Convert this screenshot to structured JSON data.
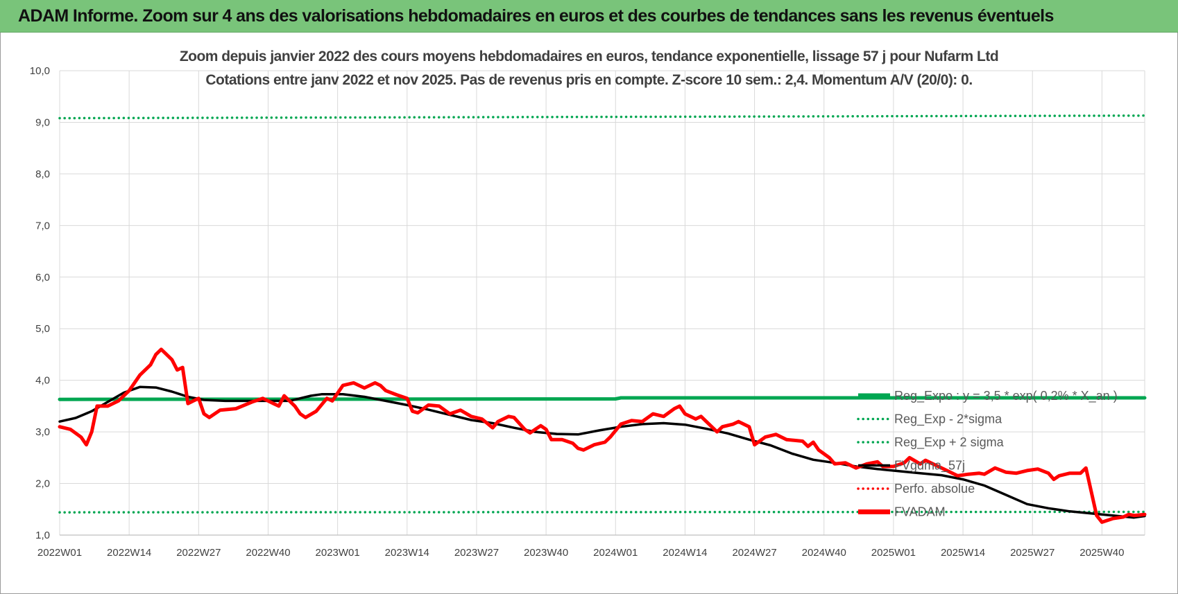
{
  "banner": {
    "title": "ADAM Informe. Zoom sur 4 ans des valorisations hebdomadaires en euros et des courbes de tendances sans les revenus éventuels"
  },
  "chart_data": {
    "type": "line",
    "title": "Zoom depuis janvier 2022 des cours moyens hebdomadaires en euros, tendance exponentielle, lissage 57 j pour Nufarm Ltd",
    "subtitle": "Cotations entre janv 2022 et nov 2025. Pas de revenus pris en compte. Z-score 10 sem.: 2,4. Momentum A/V (20/0): 0.",
    "xlabel": "",
    "ylabel": "",
    "ylim": [
      1.0,
      10.0
    ],
    "xlim": [
      1,
      204
    ],
    "y_ticks": [
      "1,0",
      "2,0",
      "3,0",
      "4,0",
      "5,0",
      "6,0",
      "7,0",
      "8,0",
      "9,0",
      "10,0"
    ],
    "y_tick_values": [
      1,
      2,
      3,
      4,
      5,
      6,
      7,
      8,
      9,
      10
    ],
    "x_ticks": [
      "2022W01",
      "2022W14",
      "2022W27",
      "2022W40",
      "2023W01",
      "2023W14",
      "2023W27",
      "2023W40",
      "2024W01",
      "2024W14",
      "2024W27",
      "2024W40",
      "2025W01",
      "2025W14",
      "2025W27",
      "2025W40"
    ],
    "x_tick_values": [
      1,
      14,
      27,
      40,
      53,
      66,
      79,
      92,
      105,
      118,
      131,
      144,
      157,
      170,
      183,
      196
    ],
    "grid": true,
    "legend_position": "right",
    "series": [
      {
        "name": "Reg_Expo : y = 3,5 * exp( 0,2% * X_an )",
        "color": "#00a651",
        "style": "solid-thick",
        "points": [
          [
            1,
            3.63
          ],
          [
            105,
            3.64
          ],
          [
            106,
            3.66
          ],
          [
            204,
            3.66
          ]
        ]
      },
      {
        "name": "Reg_Exp - 2*sigma",
        "color": "#00a651",
        "style": "dotted",
        "points": [
          [
            1,
            1.44
          ],
          [
            204,
            1.45
          ]
        ]
      },
      {
        "name": "Reg_Exp + 2 sigma",
        "color": "#00a651",
        "style": "dotted",
        "points": [
          [
            1,
            9.08
          ],
          [
            204,
            9.13
          ]
        ]
      },
      {
        "name": "FVgdma_57j",
        "color": "#000000",
        "style": "solid",
        "points": [
          [
            1,
            3.2
          ],
          [
            4,
            3.27
          ],
          [
            7,
            3.4
          ],
          [
            10,
            3.58
          ],
          [
            13,
            3.76
          ],
          [
            16,
            3.87
          ],
          [
            19,
            3.86
          ],
          [
            22,
            3.78
          ],
          [
            25,
            3.68
          ],
          [
            28,
            3.62
          ],
          [
            32,
            3.6
          ],
          [
            36,
            3.6
          ],
          [
            40,
            3.6
          ],
          [
            44,
            3.6
          ],
          [
            48,
            3.7
          ],
          [
            50,
            3.73
          ],
          [
            54,
            3.73
          ],
          [
            58,
            3.68
          ],
          [
            62,
            3.6
          ],
          [
            66,
            3.52
          ],
          [
            70,
            3.43
          ],
          [
            74,
            3.33
          ],
          [
            78,
            3.23
          ],
          [
            82,
            3.17
          ],
          [
            86,
            3.08
          ],
          [
            90,
            3.0
          ],
          [
            94,
            2.96
          ],
          [
            98,
            2.95
          ],
          [
            102,
            3.03
          ],
          [
            106,
            3.1
          ],
          [
            110,
            3.15
          ],
          [
            114,
            3.17
          ],
          [
            118,
            3.14
          ],
          [
            122,
            3.06
          ],
          [
            126,
            2.97
          ],
          [
            130,
            2.85
          ],
          [
            134,
            2.74
          ],
          [
            138,
            2.58
          ],
          [
            142,
            2.46
          ],
          [
            146,
            2.4
          ],
          [
            150,
            2.33
          ],
          [
            154,
            2.28
          ],
          [
            158,
            2.24
          ],
          [
            162,
            2.2
          ],
          [
            166,
            2.16
          ],
          [
            170,
            2.08
          ],
          [
            174,
            1.96
          ],
          [
            178,
            1.78
          ],
          [
            182,
            1.6
          ],
          [
            186,
            1.52
          ],
          [
            190,
            1.46
          ],
          [
            194,
            1.42
          ],
          [
            198,
            1.38
          ],
          [
            202,
            1.34
          ],
          [
            204,
            1.37
          ]
        ]
      },
      {
        "name": "Perfo. absolue",
        "color": "#ff0000",
        "style": "dotted",
        "points": []
      },
      {
        "name": "FVADAM",
        "color": "#ff0000",
        "style": "solid-thick",
        "points": [
          [
            1,
            3.1
          ],
          [
            3,
            3.05
          ],
          [
            5,
            2.9
          ],
          [
            6,
            2.75
          ],
          [
            7,
            3.0
          ],
          [
            8,
            3.5
          ],
          [
            10,
            3.5
          ],
          [
            12,
            3.6
          ],
          [
            14,
            3.8
          ],
          [
            16,
            4.1
          ],
          [
            18,
            4.3
          ],
          [
            19,
            4.5
          ],
          [
            20,
            4.6
          ],
          [
            21,
            4.5
          ],
          [
            22,
            4.4
          ],
          [
            23,
            4.2
          ],
          [
            24,
            4.25
          ],
          [
            25,
            3.55
          ],
          [
            26,
            3.6
          ],
          [
            27,
            3.65
          ],
          [
            28,
            3.35
          ],
          [
            29,
            3.28
          ],
          [
            31,
            3.42
          ],
          [
            34,
            3.45
          ],
          [
            37,
            3.58
          ],
          [
            39,
            3.65
          ],
          [
            41,
            3.55
          ],
          [
            42,
            3.5
          ],
          [
            43,
            3.7
          ],
          [
            45,
            3.5
          ],
          [
            46,
            3.35
          ],
          [
            47,
            3.28
          ],
          [
            49,
            3.4
          ],
          [
            51,
            3.65
          ],
          [
            52,
            3.6
          ],
          [
            54,
            3.9
          ],
          [
            56,
            3.95
          ],
          [
            58,
            3.85
          ],
          [
            60,
            3.95
          ],
          [
            61,
            3.9
          ],
          [
            62,
            3.8
          ],
          [
            64,
            3.72
          ],
          [
            66,
            3.65
          ],
          [
            67,
            3.4
          ],
          [
            68,
            3.37
          ],
          [
            70,
            3.52
          ],
          [
            72,
            3.5
          ],
          [
            74,
            3.35
          ],
          [
            76,
            3.42
          ],
          [
            78,
            3.3
          ],
          [
            80,
            3.25
          ],
          [
            82,
            3.08
          ],
          [
            83,
            3.2
          ],
          [
            85,
            3.3
          ],
          [
            86,
            3.28
          ],
          [
            88,
            3.05
          ],
          [
            89,
            2.98
          ],
          [
            91,
            3.12
          ],
          [
            92,
            3.05
          ],
          [
            93,
            2.85
          ],
          [
            95,
            2.85
          ],
          [
            97,
            2.78
          ],
          [
            98,
            2.68
          ],
          [
            99,
            2.65
          ],
          [
            101,
            2.75
          ],
          [
            103,
            2.8
          ],
          [
            104,
            2.9
          ],
          [
            106,
            3.15
          ],
          [
            108,
            3.22
          ],
          [
            110,
            3.2
          ],
          [
            112,
            3.35
          ],
          [
            114,
            3.3
          ],
          [
            116,
            3.45
          ],
          [
            117,
            3.5
          ],
          [
            118,
            3.35
          ],
          [
            120,
            3.25
          ],
          [
            121,
            3.3
          ],
          [
            123,
            3.1
          ],
          [
            124,
            3.0
          ],
          [
            125,
            3.1
          ],
          [
            127,
            3.15
          ],
          [
            128,
            3.2
          ],
          [
            130,
            3.1
          ],
          [
            131,
            2.75
          ],
          [
            133,
            2.9
          ],
          [
            135,
            2.95
          ],
          [
            137,
            2.85
          ],
          [
            140,
            2.82
          ],
          [
            141,
            2.72
          ],
          [
            142,
            2.8
          ],
          [
            143,
            2.65
          ],
          [
            145,
            2.5
          ],
          [
            146,
            2.38
          ],
          [
            148,
            2.4
          ],
          [
            150,
            2.3
          ],
          [
            152,
            2.38
          ],
          [
            154,
            2.42
          ],
          [
            155,
            2.33
          ],
          [
            157,
            2.33
          ],
          [
            159,
            2.4
          ],
          [
            160,
            2.5
          ],
          [
            162,
            2.38
          ],
          [
            163,
            2.45
          ],
          [
            165,
            2.35
          ],
          [
            167,
            2.25
          ],
          [
            169,
            2.15
          ],
          [
            171,
            2.18
          ],
          [
            173,
            2.2
          ],
          [
            174,
            2.18
          ],
          [
            176,
            2.3
          ],
          [
            178,
            2.22
          ],
          [
            180,
            2.2
          ],
          [
            182,
            2.25
          ],
          [
            184,
            2.28
          ],
          [
            186,
            2.2
          ],
          [
            187,
            2.08
          ],
          [
            188,
            2.15
          ],
          [
            190,
            2.2
          ],
          [
            192,
            2.2
          ],
          [
            193,
            2.3
          ],
          [
            195,
            1.38
          ],
          [
            196,
            1.25
          ],
          [
            198,
            1.32
          ],
          [
            200,
            1.35
          ],
          [
            201,
            1.4
          ],
          [
            202,
            1.38
          ],
          [
            204,
            1.4
          ]
        ]
      }
    ],
    "colors": {
      "banner": "#79c47a",
      "grid": "#d9d9d9",
      "reg_green": "#00a651",
      "fvadam_red": "#ff0000",
      "fvgdma_black": "#000000"
    }
  }
}
